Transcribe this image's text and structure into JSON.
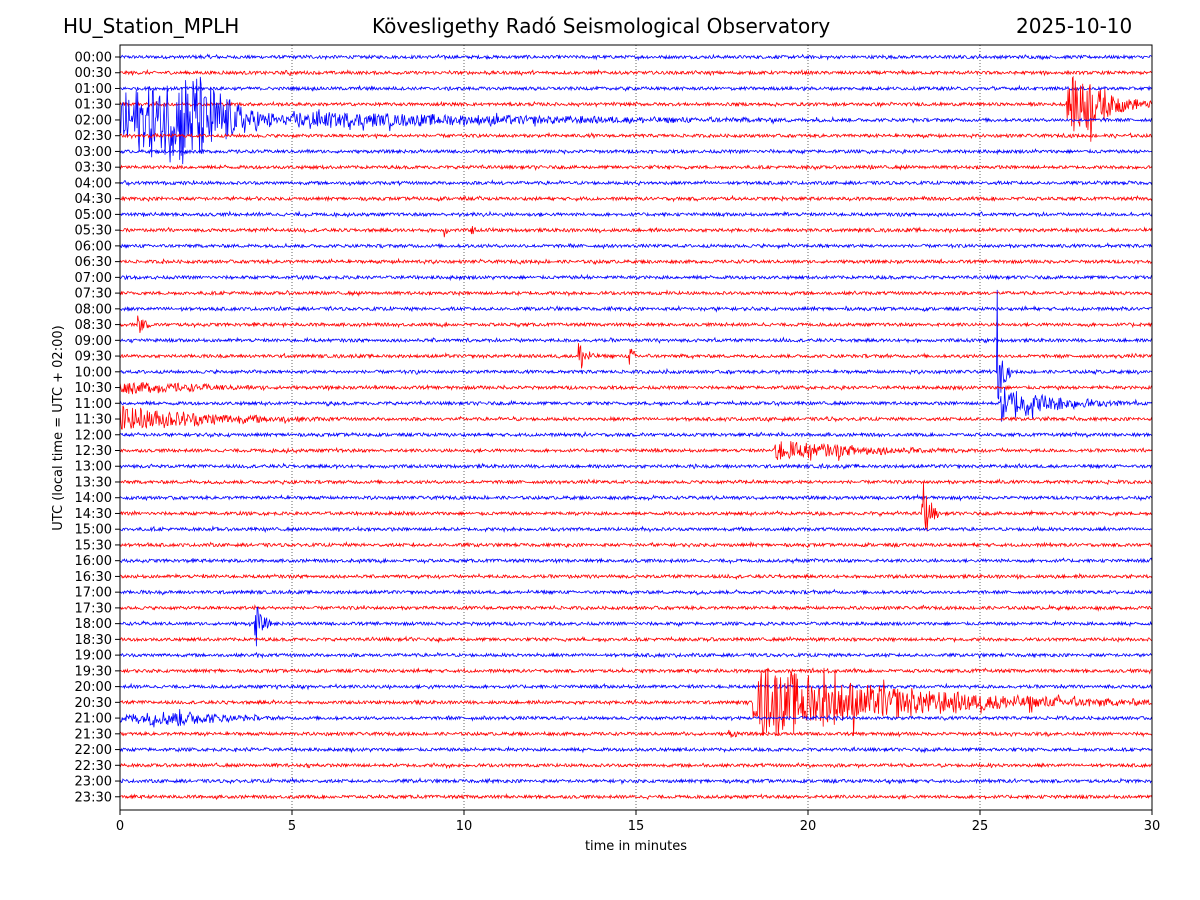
{
  "header": {
    "station": "HU_Station_MPLH",
    "observatory": "Kövesligethy Radó Seismological Observatory",
    "date": "2025-10-10"
  },
  "chart_data": {
    "type": "line",
    "title": "Kövesligethy Radó Seismological Observatory",
    "xlabel": "time in minutes",
    "ylabel": "UTC (local time = UTC + 02:00)",
    "xlim": [
      0,
      30
    ],
    "xticks": [
      "0",
      "5",
      "10",
      "15",
      "20",
      "25",
      "30"
    ],
    "grid": "vertical dotted at 5-minute intervals",
    "row_labels": [
      "00:00",
      "00:30",
      "01:00",
      "01:30",
      "02:00",
      "02:30",
      "03:00",
      "03:30",
      "04:00",
      "04:30",
      "05:00",
      "05:30",
      "06:00",
      "06:30",
      "07:00",
      "07:30",
      "08:00",
      "08:30",
      "09:00",
      "09:30",
      "10:00",
      "10:30",
      "11:00",
      "11:30",
      "12:00",
      "12:30",
      "13:00",
      "13:30",
      "14:00",
      "14:30",
      "15:00",
      "15:30",
      "16:00",
      "16:30",
      "17:00",
      "17:30",
      "18:00",
      "18:30",
      "19:00",
      "19:30",
      "20:00",
      "20:30",
      "21:00",
      "21:30",
      "22:00",
      "22:30",
      "23:00",
      "23:30"
    ],
    "colors": [
      "#0000ff",
      "#ff0000"
    ],
    "noise_amplitude": 0.1,
    "events": [
      {
        "row": 1,
        "start": 4.9,
        "end": 5.4,
        "amp": 0.3
      },
      {
        "row": 3,
        "start": 27.5,
        "end": 30,
        "amp": 2.5,
        "peak": 27.9
      },
      {
        "row": 4,
        "start": 0,
        "end": 5,
        "amp": 3.5,
        "peak": 2.2
      },
      {
        "row": 4,
        "start": 5,
        "end": 30,
        "amp": 0.6
      },
      {
        "row": 11,
        "start": 9.4,
        "end": 9.7,
        "amp": 0.6
      },
      {
        "row": 11,
        "start": 10.2,
        "end": 10.5,
        "amp": 0.5
      },
      {
        "row": 17,
        "start": 0.5,
        "end": 1.0,
        "amp": 1.1
      },
      {
        "row": 19,
        "start": 13.3,
        "end": 13.9,
        "amp": 1.8
      },
      {
        "row": 19,
        "start": 14.8,
        "end": 15.4,
        "amp": 0.7
      },
      {
        "row": 20,
        "start": 25.5,
        "end": 25.9,
        "amp": 3.5
      },
      {
        "row": 21,
        "start": 0,
        "end": 8,
        "amp": 0.5
      },
      {
        "row": 22,
        "start": 25.6,
        "end": 30,
        "amp": 1.3
      },
      {
        "row": 23,
        "start": 0,
        "end": 7.5,
        "amp": 1.0
      },
      {
        "row": 25,
        "start": 19,
        "end": 26.5,
        "amp": 0.8
      },
      {
        "row": 29,
        "start": 23.3,
        "end": 23.8,
        "amp": 3.0
      },
      {
        "row": 36,
        "start": 3.9,
        "end": 4.4,
        "amp": 2.2
      },
      {
        "row": 41,
        "start": 18.4,
        "end": 30,
        "amp": 2.5,
        "peak": 18.7
      },
      {
        "row": 42,
        "start": 0,
        "end": 6,
        "amp": 0.6,
        "peak": 1.7
      },
      {
        "row": 43,
        "start": 17.7,
        "end": 18.3,
        "amp": 0.5
      }
    ]
  }
}
